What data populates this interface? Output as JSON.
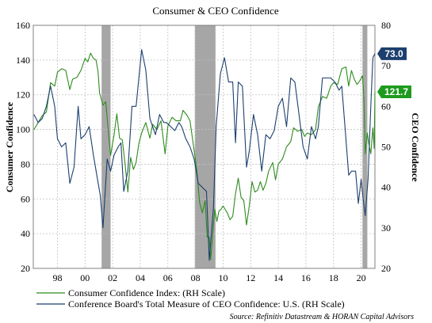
{
  "chart_data": {
    "type": "line",
    "title": "Consumer & CEO Confidence",
    "ylabel_left": "Consumer Confidence",
    "ylabel_right": "CEO Confidence",
    "xlim": [
      1996.25,
      2021.0
    ],
    "ylim_left": [
      20,
      160
    ],
    "ylim_right": [
      20,
      80
    ],
    "yticks_left": [
      20,
      40,
      60,
      80,
      100,
      120,
      140,
      160
    ],
    "yticks_right": [
      20,
      30,
      40,
      50,
      60,
      70,
      80
    ],
    "xticks": [
      {
        "x": 1998,
        "label": "98"
      },
      {
        "x": 2000,
        "label": "00"
      },
      {
        "x": 2002,
        "label": "02"
      },
      {
        "x": 2004,
        "label": "04"
      },
      {
        "x": 2006,
        "label": "06"
      },
      {
        "x": 2008,
        "label": "08"
      },
      {
        "x": 2010,
        "label": "10"
      },
      {
        "x": 2012,
        "label": "12"
      },
      {
        "x": 2014,
        "label": "14"
      },
      {
        "x": 2016,
        "label": "16"
      },
      {
        "x": 2018,
        "label": "18"
      },
      {
        "x": 2020,
        "label": "20"
      }
    ],
    "grid": true,
    "recessions": [
      {
        "start": 2001.2,
        "end": 2001.85
      },
      {
        "start": 2007.95,
        "end": 2009.45
      },
      {
        "start": 2020.1,
        "end": 2020.45
      }
    ],
    "series": [
      {
        "name": "Consumer Confidence Index: (RH Scale)",
        "color": "#2e8b1e",
        "axis": "left",
        "points": [
          [
            1996.3,
            100
          ],
          [
            1996.6,
            104
          ],
          [
            1996.9,
            108
          ],
          [
            1997.2,
            110
          ],
          [
            1997.5,
            127
          ],
          [
            1997.8,
            125
          ],
          [
            1998.0,
            133
          ],
          [
            1998.3,
            135
          ],
          [
            1998.6,
            134
          ],
          [
            1998.9,
            123
          ],
          [
            1999.1,
            129
          ],
          [
            1999.4,
            130
          ],
          [
            1999.7,
            134
          ],
          [
            2000.0,
            141
          ],
          [
            2000.2,
            139
          ],
          [
            2000.4,
            144
          ],
          [
            2000.6,
            141
          ],
          [
            2000.8,
            140
          ],
          [
            2000.95,
            133
          ],
          [
            2001.05,
            121
          ],
          [
            2001.3,
            114
          ],
          [
            2001.5,
            116
          ],
          [
            2001.7,
            98
          ],
          [
            2001.85,
            85
          ],
          [
            2002.1,
            97
          ],
          [
            2002.3,
            109
          ],
          [
            2002.5,
            95
          ],
          [
            2002.7,
            94
          ],
          [
            2002.9,
            80
          ],
          [
            2003.1,
            64
          ],
          [
            2003.3,
            84
          ],
          [
            2003.5,
            77
          ],
          [
            2003.7,
            81
          ],
          [
            2003.9,
            92
          ],
          [
            2004.1,
            98
          ],
          [
            2004.4,
            104
          ],
          [
            2004.7,
            95
          ],
          [
            2004.9,
            103
          ],
          [
            2005.2,
            100
          ],
          [
            2005.5,
            105
          ],
          [
            2005.8,
            86
          ],
          [
            2006.0,
            102
          ],
          [
            2006.3,
            107
          ],
          [
            2006.6,
            105
          ],
          [
            2006.9,
            105
          ],
          [
            2007.1,
            111
          ],
          [
            2007.4,
            108
          ],
          [
            2007.6,
            105
          ],
          [
            2007.9,
            88
          ],
          [
            2008.1,
            76
          ],
          [
            2008.3,
            58
          ],
          [
            2008.5,
            52
          ],
          [
            2008.7,
            59
          ],
          [
            2008.85,
            38
          ],
          [
            2009.0,
            38
          ],
          [
            2009.1,
            25
          ],
          [
            2009.25,
            40
          ],
          [
            2009.4,
            54
          ],
          [
            2009.55,
            47
          ],
          [
            2009.7,
            53
          ],
          [
            2009.85,
            54
          ],
          [
            2010.0,
            56
          ],
          [
            2010.3,
            52
          ],
          [
            2010.5,
            48
          ],
          [
            2010.7,
            50
          ],
          [
            2010.9,
            63
          ],
          [
            2011.1,
            72
          ],
          [
            2011.3,
            61
          ],
          [
            2011.5,
            59
          ],
          [
            2011.7,
            45
          ],
          [
            2011.9,
            56
          ],
          [
            2012.1,
            70
          ],
          [
            2012.3,
            64
          ],
          [
            2012.5,
            65
          ],
          [
            2012.7,
            70
          ],
          [
            2012.9,
            65
          ],
          [
            2013.1,
            69
          ],
          [
            2013.3,
            76
          ],
          [
            2013.6,
            81
          ],
          [
            2013.8,
            71
          ],
          [
            2014.0,
            80
          ],
          [
            2014.3,
            83
          ],
          [
            2014.6,
            90
          ],
          [
            2014.9,
            93
          ],
          [
            2015.1,
            101
          ],
          [
            2015.4,
            99
          ],
          [
            2015.7,
            100
          ],
          [
            2015.9,
            96
          ],
          [
            2016.1,
            98
          ],
          [
            2016.4,
            97
          ],
          [
            2016.7,
            100
          ],
          [
            2016.9,
            113
          ],
          [
            2017.2,
            119
          ],
          [
            2017.5,
            118
          ],
          [
            2017.8,
            125
          ],
          [
            2018.0,
            127
          ],
          [
            2018.3,
            126
          ],
          [
            2018.6,
            135
          ],
          [
            2018.9,
            136
          ],
          [
            2019.1,
            125
          ],
          [
            2019.3,
            134
          ],
          [
            2019.5,
            129
          ],
          [
            2019.7,
            126
          ],
          [
            2019.9,
            128
          ],
          [
            2020.1,
            131
          ],
          [
            2020.2,
            118
          ],
          [
            2020.3,
            86
          ],
          [
            2020.45,
            98
          ],
          [
            2020.55,
            92
          ],
          [
            2020.7,
            86
          ],
          [
            2020.85,
            101
          ],
          [
            2020.95,
            89
          ],
          [
            2021.0,
            121.7
          ]
        ]
      },
      {
        "name": "Conference Board's Total Measure of CEO Confidence: U.S. (RH Scale)",
        "color": "#1c3f6e",
        "axis": "right",
        "points": [
          [
            1996.3,
            58
          ],
          [
            1996.6,
            56
          ],
          [
            1996.9,
            57
          ],
          [
            1997.2,
            60
          ],
          [
            1997.5,
            65
          ],
          [
            1997.8,
            60
          ],
          [
            1998.0,
            52
          ],
          [
            1998.3,
            50
          ],
          [
            1998.6,
            51
          ],
          [
            1998.9,
            41
          ],
          [
            1999.2,
            45
          ],
          [
            1999.5,
            60
          ],
          [
            1999.7,
            52
          ],
          [
            2000.0,
            53
          ],
          [
            2000.3,
            55
          ],
          [
            2000.6,
            48
          ],
          [
            2000.9,
            42
          ],
          [
            2001.1,
            38
          ],
          [
            2001.3,
            30
          ],
          [
            2001.6,
            47
          ],
          [
            2001.85,
            44
          ],
          [
            2002.1,
            48
          ],
          [
            2002.4,
            50
          ],
          [
            2002.6,
            51
          ],
          [
            2002.8,
            39
          ],
          [
            2003.1,
            44
          ],
          [
            2003.4,
            60
          ],
          [
            2003.7,
            60
          ],
          [
            2004.1,
            74
          ],
          [
            2004.4,
            69
          ],
          [
            2004.7,
            57
          ],
          [
            2004.9,
            55
          ],
          [
            2005.1,
            53
          ],
          [
            2005.4,
            58
          ],
          [
            2005.7,
            56
          ],
          [
            2005.9,
            56
          ],
          [
            2006.2,
            55
          ],
          [
            2006.5,
            54
          ],
          [
            2006.8,
            56
          ],
          [
            2007.0,
            55
          ],
          [
            2007.3,
            52
          ],
          [
            2007.6,
            50
          ],
          [
            2007.9,
            47
          ],
          [
            2008.2,
            41
          ],
          [
            2008.5,
            40
          ],
          [
            2008.8,
            39
          ],
          [
            2009.0,
            22
          ],
          [
            2009.3,
            35
          ],
          [
            2009.5,
            55
          ],
          [
            2009.8,
            68
          ],
          [
            2010.1,
            72
          ],
          [
            2010.4,
            66
          ],
          [
            2010.7,
            66
          ],
          [
            2010.9,
            51
          ],
          [
            2011.1,
            66
          ],
          [
            2011.4,
            65
          ],
          [
            2011.7,
            45
          ],
          [
            2011.9,
            49
          ],
          [
            2012.2,
            58
          ],
          [
            2012.5,
            53
          ],
          [
            2012.8,
            44
          ],
          [
            2013.1,
            53
          ],
          [
            2013.4,
            52
          ],
          [
            2013.7,
            54
          ],
          [
            2014.0,
            60
          ],
          [
            2014.3,
            62
          ],
          [
            2014.6,
            55
          ],
          [
            2014.9,
            67
          ],
          [
            2015.2,
            66
          ],
          [
            2015.5,
            58
          ],
          [
            2015.8,
            50
          ],
          [
            2016.1,
            47
          ],
          [
            2016.4,
            55
          ],
          [
            2016.7,
            52
          ],
          [
            2016.9,
            55
          ],
          [
            2017.2,
            67
          ],
          [
            2017.5,
            67
          ],
          [
            2017.8,
            67
          ],
          [
            2018.1,
            66
          ],
          [
            2018.4,
            64
          ],
          [
            2018.6,
            65
          ],
          [
            2018.9,
            52
          ],
          [
            2019.1,
            43
          ],
          [
            2019.3,
            44
          ],
          [
            2019.6,
            44
          ],
          [
            2019.8,
            36
          ],
          [
            2020.0,
            42
          ],
          [
            2020.15,
            37
          ],
          [
            2020.3,
            33
          ],
          [
            2020.5,
            42
          ],
          [
            2020.7,
            60
          ],
          [
            2020.85,
            72
          ],
          [
            2021.0,
            73.0
          ]
        ]
      }
    ],
    "callouts": [
      {
        "series": 1,
        "label": "73.0",
        "value": 73.0,
        "color": "#1c3f6e"
      },
      {
        "series": 0,
        "label": "121.7",
        "value": 121.7,
        "color": "#1e9b1e"
      }
    ],
    "legend": {
      "placement": "bottom-left",
      "entries": [
        "Consumer Confidence Index: (RH Scale)",
        "Conference Board's Total Measure of CEO Confidence: U.S. (RH Scale)"
      ]
    },
    "source": "Source: Refinitiv Datastream & HORAN Capital Advisors"
  }
}
